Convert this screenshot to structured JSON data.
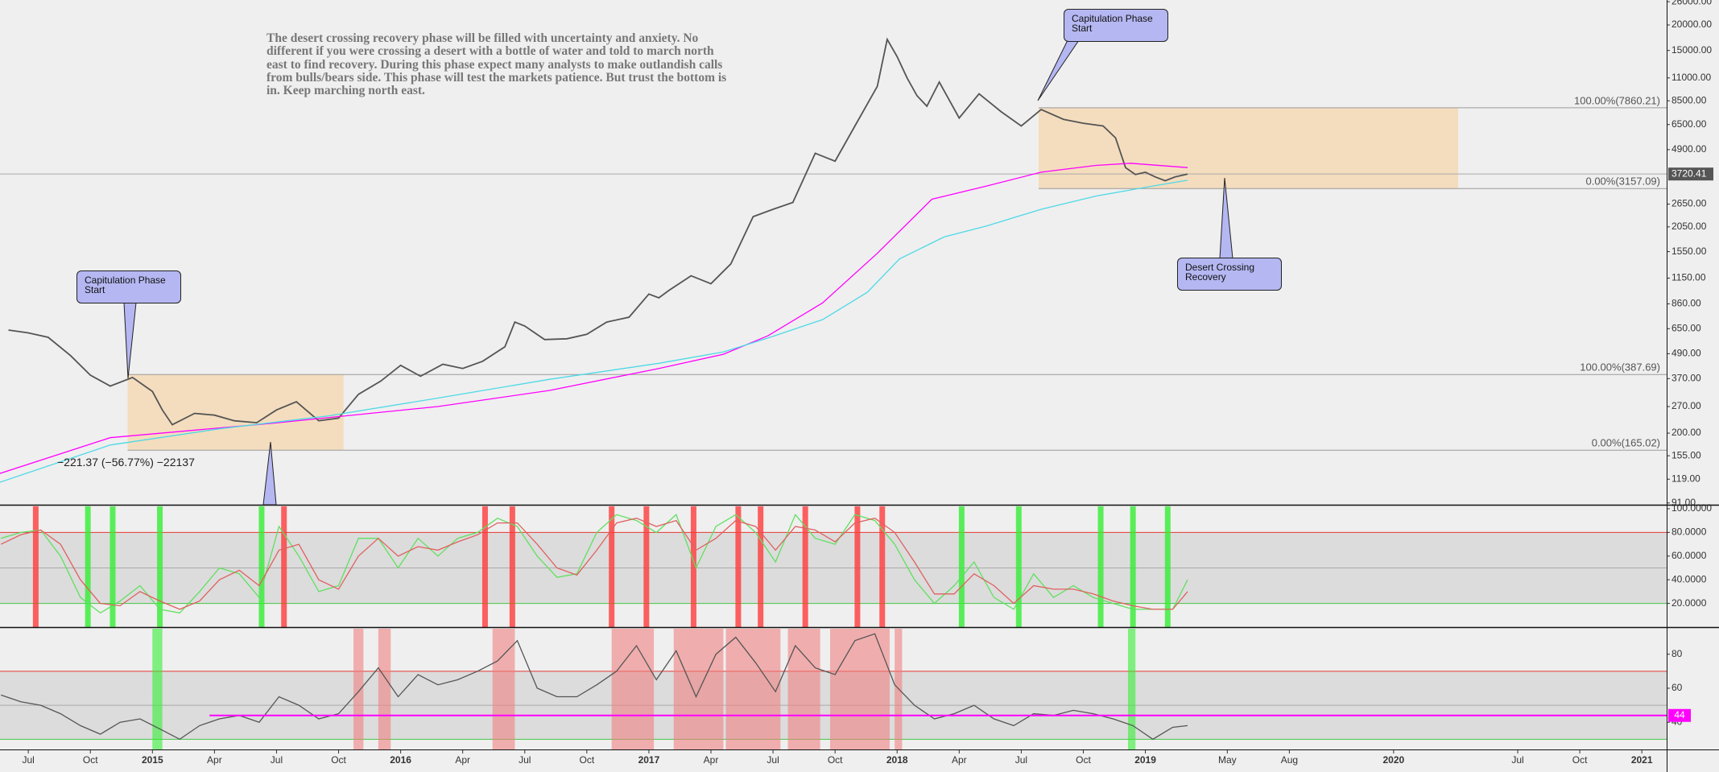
{
  "chart_data": [
    {
      "type": "line",
      "log_scale": true,
      "ylim": [
        90,
        26500
      ],
      "yticks": [
        {
          "value": 26000,
          "label": "26000.00"
        },
        {
          "value": 20000,
          "label": "20000.00"
        },
        {
          "value": 15000,
          "label": "15000.00"
        },
        {
          "value": 11000,
          "label": "11000.00"
        },
        {
          "value": 8500,
          "label": "8500.00"
        },
        {
          "value": 6500,
          "label": "6500.00"
        },
        {
          "value": 4900,
          "label": "4900.00"
        },
        {
          "value": 2650,
          "label": "2650.00"
        },
        {
          "value": 2050,
          "label": "2050.00"
        },
        {
          "value": 1550,
          "label": "1550.00"
        },
        {
          "value": 1150,
          "label": "1150.00"
        },
        {
          "value": 860,
          "label": "860.00"
        },
        {
          "value": 650,
          "label": "650.00"
        },
        {
          "value": 490,
          "label": "490.00"
        },
        {
          "value": 370,
          "label": "370.00"
        },
        {
          "value": 270,
          "label": "270.00"
        },
        {
          "value": 200,
          "label": "200.00"
        },
        {
          "value": 155,
          "label": "155.00"
        },
        {
          "value": 119,
          "label": "119.00"
        },
        {
          "value": 91,
          "label": "91.00"
        }
      ],
      "series": [
        {
          "color": "#555555",
          "x": [
            2014.42,
            2014.5,
            2014.58,
            2014.67,
            2014.75,
            2014.83,
            2014.92,
            2015.0,
            2015.04,
            2015.08,
            2015.17,
            2015.25,
            2015.33,
            2015.42,
            2015.5,
            2015.58,
            2015.67,
            2015.75,
            2015.83,
            2015.92,
            2016.0,
            2016.08,
            2016.17,
            2016.25,
            2016.33,
            2016.42,
            2016.46,
            2016.5,
            2016.58,
            2016.67,
            2016.75,
            2016.83,
            2016.92,
            2017.0,
            2017.04,
            2017.08,
            2017.17,
            2017.25,
            2017.33,
            2017.42,
            2017.5,
            2017.58,
            2017.67,
            2017.75,
            2017.83,
            2017.92,
            2017.96,
            2018.0,
            2018.04,
            2018.08,
            2018.12,
            2018.17,
            2018.25,
            2018.33,
            2018.42,
            2018.5,
            2018.58,
            2018.67,
            2018.75,
            2018.83,
            2018.88,
            2018.92,
            2018.96,
            2019.0,
            2019.04,
            2019.08,
            2019.12,
            2019.17
          ],
          "values": [
            640,
            620,
            590,
            480,
            385,
            340,
            375,
            320,
            260,
            220,
            250,
            245,
            230,
            225,
            260,
            285,
            230,
            237,
            310,
            360,
            430,
            380,
            435,
            415,
            450,
            530,
            700,
            670,
            575,
            580,
            610,
            700,
            740,
            960,
            920,
            1000,
            1180,
            1080,
            1350,
            2300,
            2500,
            2700,
            4700,
            4300,
            6400,
            10000,
            17000,
            14000,
            11000,
            9000,
            8000,
            10500,
            7000,
            9200,
            7500,
            6400,
            7700,
            6900,
            6600,
            6400,
            5600,
            4000,
            3700,
            3800,
            3600,
            3450,
            3600,
            3720
          ]
        },
        {
          "color": "#ff00ff",
          "x": [
            2014.386,
            2014.83,
            2015.49,
            2016.15,
            2016.6,
            2017.04,
            2017.3,
            2017.48,
            2017.7,
            2017.92,
            2018.14,
            2018.36,
            2018.58,
            2018.8,
            2018.94,
            2019.17
          ],
          "values": [
            127,
            190,
            224,
            270,
            324,
            415,
            487,
            600,
            870,
            1520,
            2800,
            3250,
            3800,
            4100,
            4200,
            4000
          ]
        },
        {
          "color": "#4dd9e6",
          "x": [
            2014.386,
            2014.83,
            2015.27,
            2015.71,
            2016.15,
            2016.6,
            2017.04,
            2017.3,
            2017.48,
            2017.7,
            2017.88,
            2018.01,
            2018.19,
            2018.36,
            2018.58,
            2018.8,
            2019.03,
            2019.17
          ],
          "values": [
            115,
            175,
            210,
            243,
            297,
            367,
            440,
            500,
            585,
            720,
            980,
            1430,
            1830,
            2070,
            2500,
            2900,
            3250,
            3470
          ]
        }
      ],
      "last_price": 3720.41,
      "zone_color": "#f5d9b5",
      "zones": [
        {
          "x": [
            2014.9,
            2015.77
          ],
          "levels": [
            {
              "value": 387.69,
              "label": "100.00%(387.69)"
            },
            {
              "value": 165.02,
              "label": "0.00%(165.02)"
            }
          ]
        },
        {
          "x": [
            2018.57,
            2020.26
          ],
          "levels": [
            {
              "value": 7860.21,
              "label": "100.00%(7860.21)"
            },
            {
              "value": 3157.09,
              "label": "0.00%(3157.09)"
            }
          ]
        }
      ],
      "note": "The desert crossing recovery phase will be filled with uncertainty and anxiety.  No different if you were crossing a desert with a bottle of water and told to march north east to find recovery.  During this phase expect many analysts to make outlandish calls from bulls/bears side.  This phase will test the markets patience.  But trust the bottom is in.  Keep marching north east.",
      "callouts": [
        "Capitulation Phase Start",
        "Capitulation Phase Start",
        "Desert Crossing Recovery"
      ],
      "measure": "−221.37 (−56.77%) −22137"
    },
    {
      "type": "line",
      "ylim": [
        0,
        102
      ],
      "yticks": [
        {
          "value": 100,
          "label": "100.0000"
        },
        {
          "value": 80,
          "label": "80.0000"
        },
        {
          "value": 60,
          "label": "60.0000"
        },
        {
          "value": 40,
          "label": "40.0000"
        },
        {
          "value": 20,
          "label": "20.0000"
        }
      ],
      "band_color": "#dcdcdc",
      "levels": [
        {
          "value": 80,
          "color": "#e53935"
        },
        {
          "value": 50,
          "color": "#aaaaaa"
        },
        {
          "value": 20,
          "color": "#43c643"
        }
      ],
      "signals": [
        {
          "color": "#ff3b3b",
          "x": [
            2014.53,
            2015.53,
            2016.34,
            2016.45,
            2016.85,
            2016.99,
            2017.18,
            2017.36,
            2017.45,
            2017.63,
            2017.84,
            2017.94
          ]
        },
        {
          "color": "#33ee33",
          "x": [
            2014.74,
            2014.84,
            2015.03,
            2015.44,
            2018.26,
            2018.49,
            2018.82,
            2018.95,
            2019.09
          ]
        }
      ],
      "series": [
        {
          "color": "#5fe05f",
          "x": [
            2014.39,
            2014.47,
            2014.55,
            2014.63,
            2014.71,
            2014.79,
            2014.87,
            2014.95,
            2015.03,
            2015.11,
            2015.19,
            2015.27,
            2015.35,
            2015.43,
            2015.51,
            2015.59,
            2015.67,
            2015.75,
            2015.83,
            2015.91,
            2015.99,
            2016.07,
            2016.15,
            2016.23,
            2016.31,
            2016.39,
            2016.47,
            2016.55,
            2016.63,
            2016.71,
            2016.79,
            2016.87,
            2016.95,
            2017.03,
            2017.11,
            2017.19,
            2017.27,
            2017.35,
            2017.43,
            2017.51,
            2017.59,
            2017.67,
            2017.75,
            2017.83,
            2017.91,
            2017.99,
            2018.07,
            2018.15,
            2018.23,
            2018.31,
            2018.39,
            2018.47,
            2018.55,
            2018.63,
            2018.71,
            2018.79,
            2018.87,
            2018.95,
            2019.03,
            2019.11,
            2019.17
          ],
          "values": [
            75,
            80,
            82,
            60,
            25,
            12,
            22,
            35,
            15,
            12,
            30,
            50,
            45,
            25,
            85,
            60,
            30,
            35,
            75,
            75,
            50,
            75,
            60,
            75,
            80,
            92,
            85,
            60,
            42,
            45,
            80,
            95,
            90,
            80,
            95,
            50,
            85,
            95,
            80,
            55,
            95,
            75,
            70,
            95,
            90,
            70,
            40,
            20,
            35,
            55,
            25,
            15,
            45,
            25,
            35,
            25,
            20,
            15,
            15,
            15,
            40
          ]
        },
        {
          "color": "#e06060",
          "x": [
            2014.39,
            2014.47,
            2014.55,
            2014.63,
            2014.71,
            2014.79,
            2014.87,
            2014.95,
            2015.03,
            2015.11,
            2015.19,
            2015.27,
            2015.35,
            2015.43,
            2015.51,
            2015.59,
            2015.67,
            2015.75,
            2015.83,
            2015.91,
            2015.99,
            2016.07,
            2016.15,
            2016.23,
            2016.31,
            2016.39,
            2016.47,
            2016.55,
            2016.63,
            2016.71,
            2016.79,
            2016.87,
            2016.95,
            2017.03,
            2017.11,
            2017.19,
            2017.27,
            2017.35,
            2017.43,
            2017.51,
            2017.59,
            2017.67,
            2017.75,
            2017.83,
            2017.91,
            2017.99,
            2018.07,
            2018.15,
            2018.23,
            2018.31,
            2018.39,
            2018.47,
            2018.55,
            2018.63,
            2018.71,
            2018.79,
            2018.87,
            2018.95,
            2019.03,
            2019.11,
            2019.17
          ],
          "values": [
            70,
            78,
            82,
            70,
            40,
            20,
            18,
            30,
            22,
            15,
            22,
            40,
            48,
            35,
            65,
            70,
            40,
            32,
            60,
            75,
            60,
            68,
            65,
            72,
            78,
            88,
            88,
            70,
            50,
            44,
            65,
            88,
            92,
            85,
            90,
            65,
            75,
            90,
            85,
            65,
            85,
            82,
            72,
            88,
            92,
            80,
            55,
            28,
            28,
            45,
            35,
            20,
            35,
            32,
            32,
            28,
            22,
            18,
            15,
            15,
            30
          ]
        }
      ]
    },
    {
      "type": "line",
      "ylim": [
        24,
        95
      ],
      "yticks": [
        40,
        60,
        80
      ],
      "xlim": [
        2014.386,
        2021.1
      ],
      "xticks": [
        {
          "value": 2014.5,
          "label": "Jul"
        },
        {
          "value": 2014.75,
          "label": "Oct"
        },
        2015,
        {
          "value": 2015.25,
          "label": "Apr"
        },
        {
          "value": 2015.5,
          "label": "Jul"
        },
        {
          "value": 2015.75,
          "label": "Oct"
        },
        2016,
        {
          "value": 2016.25,
          "label": "Apr"
        },
        {
          "value": 2016.5,
          "label": "Jul"
        },
        {
          "value": 2016.75,
          "label": "Oct"
        },
        2017,
        {
          "value": 2017.25,
          "label": "Apr"
        },
        {
          "value": 2017.5,
          "label": "Jul"
        },
        {
          "value": 2017.75,
          "label": "Oct"
        },
        2018,
        {
          "value": 2018.25,
          "label": "Apr"
        },
        {
          "value": 2018.5,
          "label": "Jul"
        },
        {
          "value": 2018.75,
          "label": "Oct"
        },
        2019,
        {
          "value": 2019.33,
          "label": "May"
        },
        {
          "value": 2019.58,
          "label": "Aug"
        },
        2020,
        {
          "value": 2020.5,
          "label": "Jul"
        },
        {
          "value": 2020.75,
          "label": "Oct"
        },
        2021
      ],
      "band_color": "#dcdcdc",
      "levels": [
        {
          "value": 70,
          "color": "#e53935"
        },
        {
          "value": 50,
          "color": "#aaaaaa"
        },
        {
          "value": 30,
          "color": "#43c643"
        }
      ],
      "zones": [
        {
          "color": "#f08080",
          "x": [
            [
              2015.81,
              2015.85
            ],
            [
              2015.91,
              2015.96
            ],
            [
              2016.37,
              2016.46
            ],
            [
              2016.85,
              2017.02
            ],
            [
              2017.1,
              2017.3
            ],
            [
              2017.31,
              2017.53
            ],
            [
              2017.56,
              2017.69
            ],
            [
              2017.73,
              2017.97
            ],
            [
              2017.99,
              2018.02
            ]
          ]
        },
        {
          "color": "#33ee33",
          "x": [
            [
              2015.0,
              2015.04
            ],
            [
              2018.93,
              2018.96
            ]
          ]
        }
      ],
      "hline": {
        "value": 44,
        "x": 2015.23,
        "color": "#ff00ff"
      },
      "series": [
        {
          "color": "#555555",
          "x": [
            2014.39,
            2014.47,
            2014.55,
            2014.63,
            2014.71,
            2014.79,
            2014.87,
            2014.95,
            2015.03,
            2015.11,
            2015.19,
            2015.27,
            2015.35,
            2015.43,
            2015.51,
            2015.59,
            2015.67,
            2015.75,
            2015.83,
            2015.91,
            2015.99,
            2016.07,
            2016.15,
            2016.23,
            2016.31,
            2016.39,
            2016.47,
            2016.55,
            2016.63,
            2016.71,
            2016.79,
            2016.87,
            2016.95,
            2017.03,
            2017.11,
            2017.19,
            2017.27,
            2017.35,
            2017.43,
            2017.51,
            2017.59,
            2017.67,
            2017.75,
            2017.83,
            2017.91,
            2017.99,
            2018.07,
            2018.15,
            2018.23,
            2018.31,
            2018.39,
            2018.47,
            2018.55,
            2018.63,
            2018.71,
            2018.79,
            2018.87,
            2018.95,
            2019.03,
            2019.11,
            2019.17
          ],
          "values": [
            56,
            52,
            50,
            45,
            38,
            33,
            40,
            42,
            36,
            30,
            38,
            42,
            44,
            40,
            55,
            50,
            42,
            45,
            58,
            72,
            55,
            68,
            62,
            65,
            70,
            76,
            88,
            60,
            55,
            55,
            62,
            70,
            85,
            65,
            82,
            55,
            80,
            90,
            75,
            58,
            85,
            72,
            68,
            88,
            92,
            62,
            50,
            42,
            45,
            50,
            42,
            38,
            45,
            44,
            47,
            45,
            42,
            38,
            30,
            37,
            38
          ]
        }
      ]
    }
  ]
}
